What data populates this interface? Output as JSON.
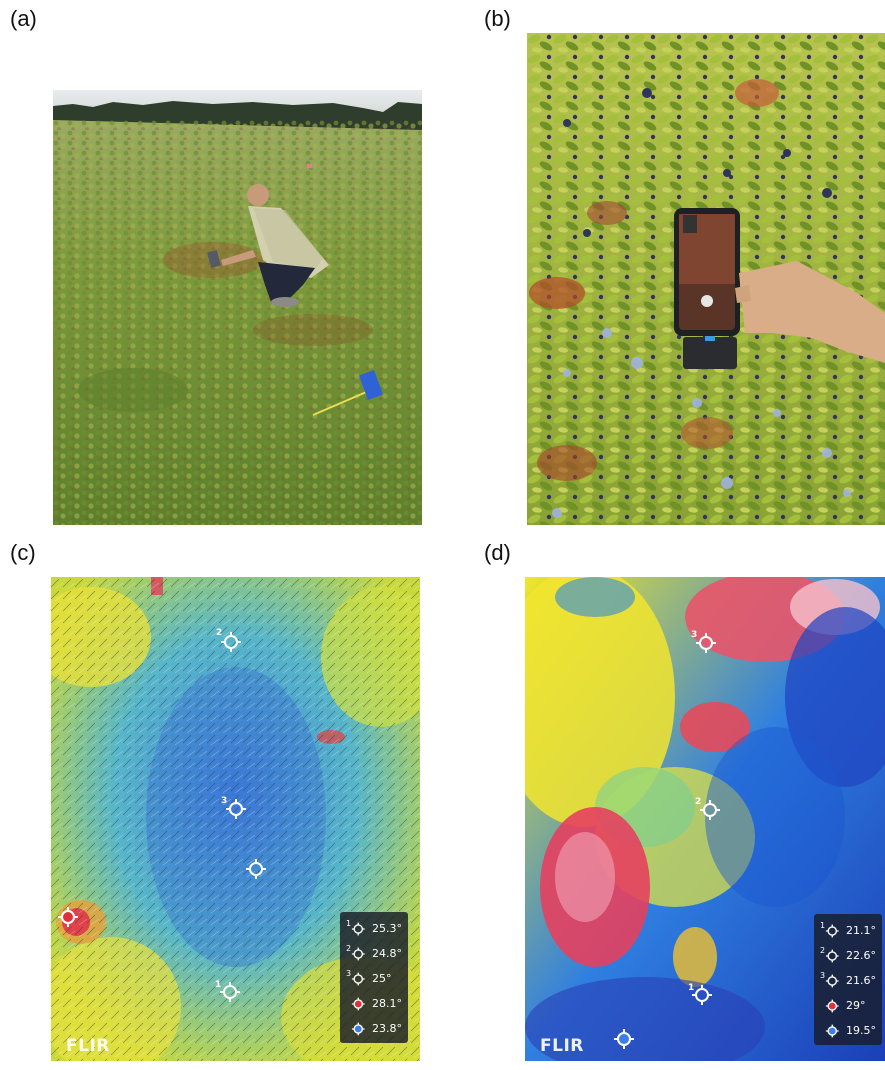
{
  "panels": {
    "a": {
      "label": "(a)"
    },
    "b": {
      "label": "(b)"
    },
    "c": {
      "label": "(c)",
      "logo": "FLIR",
      "legend": [
        {
          "index": "1",
          "value": "25.3°",
          "color": "#ffffff"
        },
        {
          "index": "2",
          "value": "24.8°",
          "color": "#ffffff"
        },
        {
          "index": "3",
          "value": "25°",
          "color": "#ffffff"
        },
        {
          "index": "",
          "value": "28.1°",
          "color": "#e0303a"
        },
        {
          "index": "",
          "value": "23.8°",
          "color": "#3c7de6"
        }
      ],
      "markers": [
        "1",
        "2",
        "3"
      ]
    },
    "d": {
      "label": "(d)",
      "logo": "FLIR",
      "legend": [
        {
          "index": "1",
          "value": "21.1°",
          "color": "#ffffff"
        },
        {
          "index": "2",
          "value": "22.6°",
          "color": "#ffffff"
        },
        {
          "index": "3",
          "value": "21.6°",
          "color": "#ffffff"
        },
        {
          "index": "",
          "value": "29°",
          "color": "#e0303a"
        },
        {
          "index": "",
          "value": "19.5°",
          "color": "#3c7de6"
        }
      ],
      "markers": [
        "1",
        "2",
        "3"
      ]
    }
  }
}
